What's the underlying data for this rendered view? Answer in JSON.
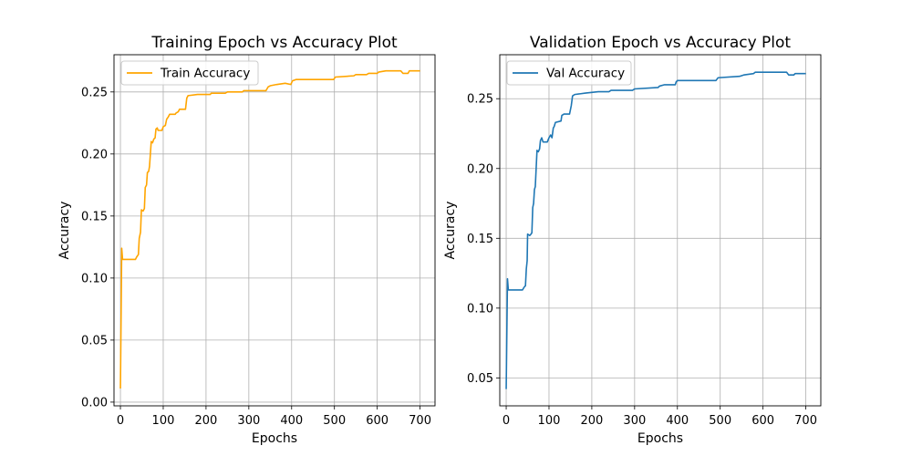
{
  "chart_data": [
    {
      "type": "line",
      "title": "Training Epoch vs Accuracy Plot",
      "xlabel": "Epochs",
      "ylabel": "Accuracy",
      "xlim": [
        -15,
        735
      ],
      "ylim": [
        -0.003,
        0.28
      ],
      "xticks": [
        0,
        100,
        200,
        300,
        400,
        500,
        600,
        700
      ],
      "yticks": [
        0.0,
        0.05,
        0.1,
        0.15,
        0.2,
        0.25
      ],
      "ytick_labels": [
        "0.00",
        "0.05",
        "0.10",
        "0.15",
        "0.20",
        "0.25"
      ],
      "grid": true,
      "legend_position": "upper-left",
      "series": [
        {
          "name": "Train Accuracy",
          "color": "#ffa500",
          "points": [
            [
              0,
              0.011
            ],
            [
              2,
              0.085
            ],
            [
              3,
              0.124
            ],
            [
              5,
              0.115
            ],
            [
              8,
              0.115
            ],
            [
              35,
              0.115
            ],
            [
              38,
              0.117
            ],
            [
              42,
              0.119
            ],
            [
              44,
              0.132
            ],
            [
              47,
              0.137
            ],
            [
              49,
              0.155
            ],
            [
              53,
              0.154
            ],
            [
              56,
              0.156
            ],
            [
              58,
              0.173
            ],
            [
              61,
              0.175
            ],
            [
              63,
              0.185
            ],
            [
              66,
              0.186
            ],
            [
              68,
              0.19
            ],
            [
              70,
              0.2
            ],
            [
              72,
              0.21
            ],
            [
              75,
              0.209
            ],
            [
              78,
              0.212
            ],
            [
              81,
              0.213
            ],
            [
              83,
              0.22
            ],
            [
              86,
              0.221
            ],
            [
              88,
              0.219
            ],
            [
              97,
              0.219
            ],
            [
              100,
              0.222
            ],
            [
              105,
              0.223
            ],
            [
              108,
              0.228
            ],
            [
              112,
              0.23
            ],
            [
              115,
              0.232
            ],
            [
              128,
              0.232
            ],
            [
              130,
              0.233
            ],
            [
              135,
              0.234
            ],
            [
              138,
              0.236
            ],
            [
              152,
              0.236
            ],
            [
              155,
              0.245
            ],
            [
              158,
              0.247
            ],
            [
              180,
              0.248
            ],
            [
              210,
              0.248
            ],
            [
              212,
              0.249
            ],
            [
              245,
              0.249
            ],
            [
              250,
              0.25
            ],
            [
              285,
              0.25
            ],
            [
              288,
              0.251
            ],
            [
              340,
              0.251
            ],
            [
              345,
              0.254
            ],
            [
              350,
              0.255
            ],
            [
              365,
              0.256
            ],
            [
              385,
              0.257
            ],
            [
              398,
              0.256
            ],
            [
              402,
              0.259
            ],
            [
              410,
              0.26
            ],
            [
              498,
              0.26
            ],
            [
              502,
              0.262
            ],
            [
              545,
              0.263
            ],
            [
              550,
              0.264
            ],
            [
              575,
              0.264
            ],
            [
              580,
              0.265
            ],
            [
              600,
              0.265
            ],
            [
              603,
              0.266
            ],
            [
              620,
              0.267
            ],
            [
              655,
              0.267
            ],
            [
              660,
              0.265
            ],
            [
              672,
              0.265
            ],
            [
              675,
              0.267
            ],
            [
              700,
              0.267
            ]
          ]
        }
      ]
    },
    {
      "type": "line",
      "title": "Validation Epoch vs Accuracy Plot",
      "xlabel": "Epochs",
      "ylabel": "Accuracy",
      "xlim": [
        -15,
        735
      ],
      "ylim": [
        0.03,
        0.2815
      ],
      "xticks": [
        0,
        100,
        200,
        300,
        400,
        500,
        600,
        700
      ],
      "yticks": [
        0.05,
        0.1,
        0.15,
        0.2,
        0.25
      ],
      "ytick_labels": [
        "0.05",
        "0.10",
        "0.15",
        "0.20",
        "0.25"
      ],
      "grid": true,
      "legend_position": "upper-left",
      "series": [
        {
          "name": "Val Accuracy",
          "color": "#1f77b4",
          "points": [
            [
              0,
              0.042
            ],
            [
              2,
              0.095
            ],
            [
              3,
              0.121
            ],
            [
              5,
              0.113
            ],
            [
              8,
              0.113
            ],
            [
              38,
              0.113
            ],
            [
              42,
              0.115
            ],
            [
              45,
              0.116
            ],
            [
              47,
              0.128
            ],
            [
              49,
              0.134
            ],
            [
              50,
              0.153
            ],
            [
              55,
              0.152
            ],
            [
              58,
              0.153
            ],
            [
              60,
              0.154
            ],
            [
              62,
              0.172
            ],
            [
              64,
              0.175
            ],
            [
              66,
              0.185
            ],
            [
              68,
              0.187
            ],
            [
              70,
              0.2
            ],
            [
              72,
              0.213
            ],
            [
              75,
              0.212
            ],
            [
              78,
              0.214
            ],
            [
              80,
              0.22
            ],
            [
              83,
              0.222
            ],
            [
              86,
              0.219
            ],
            [
              96,
              0.219
            ],
            [
              100,
              0.222
            ],
            [
              104,
              0.224
            ],
            [
              107,
              0.222
            ],
            [
              110,
              0.229
            ],
            [
              112,
              0.23
            ],
            [
              115,
              0.233
            ],
            [
              128,
              0.234
            ],
            [
              130,
              0.238
            ],
            [
              135,
              0.239
            ],
            [
              148,
              0.239
            ],
            [
              152,
              0.245
            ],
            [
              155,
              0.252
            ],
            [
              160,
              0.253
            ],
            [
              185,
              0.254
            ],
            [
              215,
              0.255
            ],
            [
              240,
              0.255
            ],
            [
              245,
              0.256
            ],
            [
              295,
              0.256
            ],
            [
              300,
              0.257
            ],
            [
              355,
              0.258
            ],
            [
              358,
              0.259
            ],
            [
              370,
              0.26
            ],
            [
              395,
              0.26
            ],
            [
              397,
              0.262
            ],
            [
              400,
              0.263
            ],
            [
              490,
              0.263
            ],
            [
              495,
              0.265
            ],
            [
              545,
              0.266
            ],
            [
              555,
              0.267
            ],
            [
              578,
              0.268
            ],
            [
              582,
              0.269
            ],
            [
              655,
              0.269
            ],
            [
              660,
              0.267
            ],
            [
              672,
              0.267
            ],
            [
              675,
              0.268
            ],
            [
              700,
              0.268
            ]
          ]
        }
      ]
    }
  ]
}
